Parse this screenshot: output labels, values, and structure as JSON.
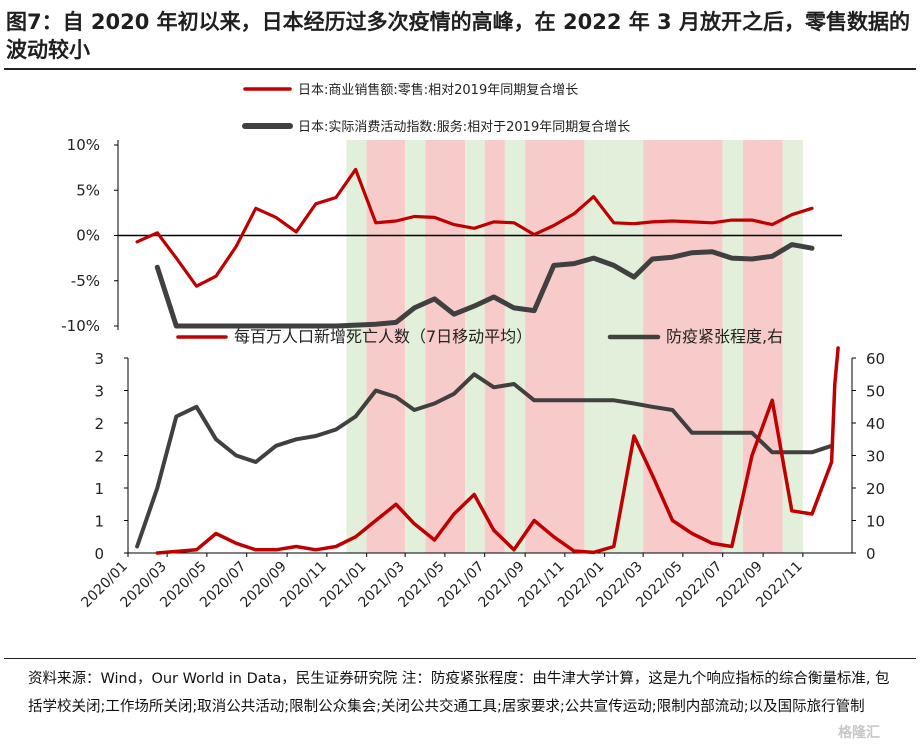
{
  "figure_title": "图7：自 2020 年初以来，日本经历过多次疫情的高峰，在 2022 年 3 月放开之后，零售数据的波动较小",
  "footnote": "资料来源：Wind，Our World in Data，民生证券研究院 注：防疫紧张程度：由牛津大学计算，这是九个响应指标的综合衡量标准, 包括学校关闭;工作场所关闭;取消公共活动;限制公众集会;关闭公共交通工具;居家要求;公共宣传运动;限制内部流动;以及国际旅行管制",
  "watermark": "格隆汇",
  "colors": {
    "red": "#c00000",
    "gray": "#404040",
    "green_band": "#e2efda",
    "pink_band": "#f8cbcb"
  },
  "chart_data": [
    {
      "type": "line",
      "legend_placement": "top",
      "ylim": [
        -10,
        10
      ],
      "y_ticks": [
        "10%",
        "5%",
        "0%",
        "-5%",
        "-10%"
      ],
      "series": [
        {
          "name": "日本:商业销售额:零售:相对2019年同期复合增长",
          "color": "#c00000",
          "points": [
            [
              "2020-01",
              -0.7
            ],
            [
              "2020-02",
              0.3
            ],
            [
              "2020-03",
              -2.5
            ],
            [
              "2020-04",
              -5.6
            ],
            [
              "2020-05",
              -4.5
            ],
            [
              "2020-06",
              -1.2
            ],
            [
              "2020-07",
              3.0
            ],
            [
              "2020-08",
              2.0
            ],
            [
              "2020-09",
              0.4
            ],
            [
              "2020-10",
              3.5
            ],
            [
              "2020-11",
              4.2
            ],
            [
              "2020-12",
              7.3
            ],
            [
              "2021-01",
              1.4
            ],
            [
              "2021-02",
              1.6
            ],
            [
              "2021-03",
              2.1
            ],
            [
              "2021-04",
              2.0
            ],
            [
              "2021-05",
              1.2
            ],
            [
              "2021-06",
              0.8
            ],
            [
              "2021-07",
              1.5
            ],
            [
              "2021-08",
              1.4
            ],
            [
              "2021-09",
              0.1
            ],
            [
              "2021-10",
              1.1
            ],
            [
              "2021-11",
              2.4
            ],
            [
              "2021-12",
              4.3
            ],
            [
              "2022-01",
              1.4
            ],
            [
              "2022-02",
              1.3
            ],
            [
              "2022-03",
              1.5
            ],
            [
              "2022-04",
              1.6
            ],
            [
              "2022-05",
              1.5
            ],
            [
              "2022-06",
              1.4
            ],
            [
              "2022-07",
              1.7
            ],
            [
              "2022-08",
              1.7
            ],
            [
              "2022-09",
              1.2
            ],
            [
              "2022-10",
              2.3
            ],
            [
              "2022-11",
              3.0
            ]
          ]
        },
        {
          "name": "日本:实际消费活动指数:服务:相对于2019年同期复合增长",
          "color": "#404040",
          "points": [
            [
              "2020-02",
              -3.5
            ],
            [
              "2020-03",
              -10
            ],
            [
              "2020-11",
              -10
            ],
            [
              "2021-01",
              -9.8
            ],
            [
              "2021-02",
              -9.6
            ],
            [
              "2021-03",
              -8.0
            ],
            [
              "2021-04",
              -7.0
            ],
            [
              "2021-05",
              -8.7
            ],
            [
              "2021-06",
              -7.8
            ],
            [
              "2021-07",
              -6.8
            ],
            [
              "2021-08",
              -8.0
            ],
            [
              "2021-09",
              -8.3
            ],
            [
              "2021-10",
              -3.3
            ],
            [
              "2021-11",
              -3.1
            ],
            [
              "2021-12",
              -2.5
            ],
            [
              "2022-01",
              -3.3
            ],
            [
              "2022-02",
              -4.6
            ],
            [
              "2022-03",
              -2.6
            ],
            [
              "2022-04",
              -2.4
            ],
            [
              "2022-05",
              -1.9
            ],
            [
              "2022-06",
              -1.8
            ],
            [
              "2022-07",
              -2.5
            ],
            [
              "2022-08",
              -2.6
            ],
            [
              "2022-09",
              -2.3
            ],
            [
              "2022-10",
              -1.0
            ],
            [
              "2022-11",
              -1.4
            ]
          ]
        }
      ]
    },
    {
      "type": "line",
      "legend_placement": "top",
      "ylim_left": [
        0,
        3
      ],
      "ylim_right": [
        0,
        60
      ],
      "y_ticks_left": [
        "3",
        "3",
        "2",
        "2",
        "1",
        "1",
        "0"
      ],
      "y_ticks_right": [
        "60",
        "50",
        "40",
        "30",
        "20",
        "10",
        "0"
      ],
      "x_ticks": [
        "2020/01",
        "2020/03",
        "2020/05",
        "2020/07",
        "2020/09",
        "2020/11",
        "2021/01",
        "2021/03",
        "2021/05",
        "2021/07",
        "2021/09",
        "2021/11",
        "2022/01",
        "2022/03",
        "2022/05",
        "2022/07",
        "2022/09",
        "2022/11"
      ],
      "series": [
        {
          "name": "每百万人口新增死亡人数（7日移动平均）",
          "axis": "left",
          "color": "#c00000",
          "points": [
            [
              "2020-02",
              0.0
            ],
            [
              "2020-04",
              0.05
            ],
            [
              "2020-05",
              0.3
            ],
            [
              "2020-06",
              0.15
            ],
            [
              "2020-07",
              0.05
            ],
            [
              "2020-08",
              0.05
            ],
            [
              "2020-09",
              0.1
            ],
            [
              "2020-10",
              0.05
            ],
            [
              "2020-11",
              0.1
            ],
            [
              "2020-12",
              0.25
            ],
            [
              "2021-01",
              0.5
            ],
            [
              "2021-02",
              0.75
            ],
            [
              "2021-03",
              0.45
            ],
            [
              "2021-04",
              0.2
            ],
            [
              "2021-05",
              0.6
            ],
            [
              "2021-06",
              0.9
            ],
            [
              "2021-07",
              0.35
            ],
            [
              "2021-08",
              0.05
            ],
            [
              "2021-09",
              0.5
            ],
            [
              "2021-10",
              0.25
            ],
            [
              "2021-11",
              0.03
            ],
            [
              "2021-12",
              0.01
            ],
            [
              "2022-01",
              0.1
            ],
            [
              "2022-02",
              1.8
            ],
            [
              "2022-03",
              1.2
            ],
            [
              "2022-04",
              0.5
            ],
            [
              "2022-05",
              0.3
            ],
            [
              "2022-06",
              0.15
            ],
            [
              "2022-07",
              0.1
            ],
            [
              "2022-08",
              1.5
            ],
            [
              "2022-09",
              2.35
            ],
            [
              "2022-10",
              0.65
            ],
            [
              "2022-11",
              0.6
            ],
            [
              "2022-12",
              1.4
            ],
            [
              "2022-12-20",
              2.6
            ],
            [
              "2022-12-25",
              3.2
            ]
          ]
        },
        {
          "name": "防疫紧张程度,右",
          "axis": "right",
          "color": "#404040",
          "points": [
            [
              "2020-01",
              2
            ],
            [
              "2020-02",
              20
            ],
            [
              "2020-03",
              42
            ],
            [
              "2020-04",
              45
            ],
            [
              "2020-05",
              35
            ],
            [
              "2020-06",
              30
            ],
            [
              "2020-07",
              28
            ],
            [
              "2020-08",
              33
            ],
            [
              "2020-09",
              35
            ],
            [
              "2020-10",
              36
            ],
            [
              "2020-11",
              38
            ],
            [
              "2020-12",
              42
            ],
            [
              "2021-01",
              50
            ],
            [
              "2021-02",
              48
            ],
            [
              "2021-03",
              44
            ],
            [
              "2021-04",
              46
            ],
            [
              "2021-05",
              49
            ],
            [
              "2021-06",
              55
            ],
            [
              "2021-07",
              51
            ],
            [
              "2021-08",
              52
            ],
            [
              "2021-09",
              47
            ],
            [
              "2021-10",
              47
            ],
            [
              "2021-11",
              47
            ],
            [
              "2021-12",
              47
            ],
            [
              "2022-01",
              47
            ],
            [
              "2022-02",
              46
            ],
            [
              "2022-03",
              45
            ],
            [
              "2022-04",
              44
            ],
            [
              "2022-05",
              37
            ],
            [
              "2022-06",
              37
            ],
            [
              "2022-07",
              37
            ],
            [
              "2022-08",
              37
            ],
            [
              "2022-09",
              31
            ],
            [
              "2022-10",
              31
            ],
            [
              "2022-11",
              31
            ],
            [
              "2022-12",
              33
            ]
          ]
        }
      ]
    }
  ],
  "shaded_periods": [
    {
      "start": "2020-12",
      "end": "2021-01",
      "color": "green"
    },
    {
      "start": "2021-01",
      "end": "2021-03",
      "color": "pink"
    },
    {
      "start": "2021-03",
      "end": "2021-04",
      "color": "green"
    },
    {
      "start": "2021-04",
      "end": "2021-06",
      "color": "pink"
    },
    {
      "start": "2021-06",
      "end": "2021-07",
      "color": "green"
    },
    {
      "start": "2021-07",
      "end": "2021-08",
      "color": "pink"
    },
    {
      "start": "2021-08",
      "end": "2021-09",
      "color": "green"
    },
    {
      "start": "2021-09",
      "end": "2021-12",
      "color": "pink"
    },
    {
      "start": "2021-12",
      "end": "2022-01",
      "color": "green"
    },
    {
      "start": "2022-01",
      "end": "2022-03",
      "color": "green"
    },
    {
      "start": "2022-03",
      "end": "2022-07",
      "color": "pink"
    },
    {
      "start": "2022-07",
      "end": "2022-08",
      "color": "green"
    },
    {
      "start": "2022-08",
      "end": "2022-10",
      "color": "pink"
    },
    {
      "start": "2022-10",
      "end": "2022-11",
      "color": "green"
    }
  ]
}
